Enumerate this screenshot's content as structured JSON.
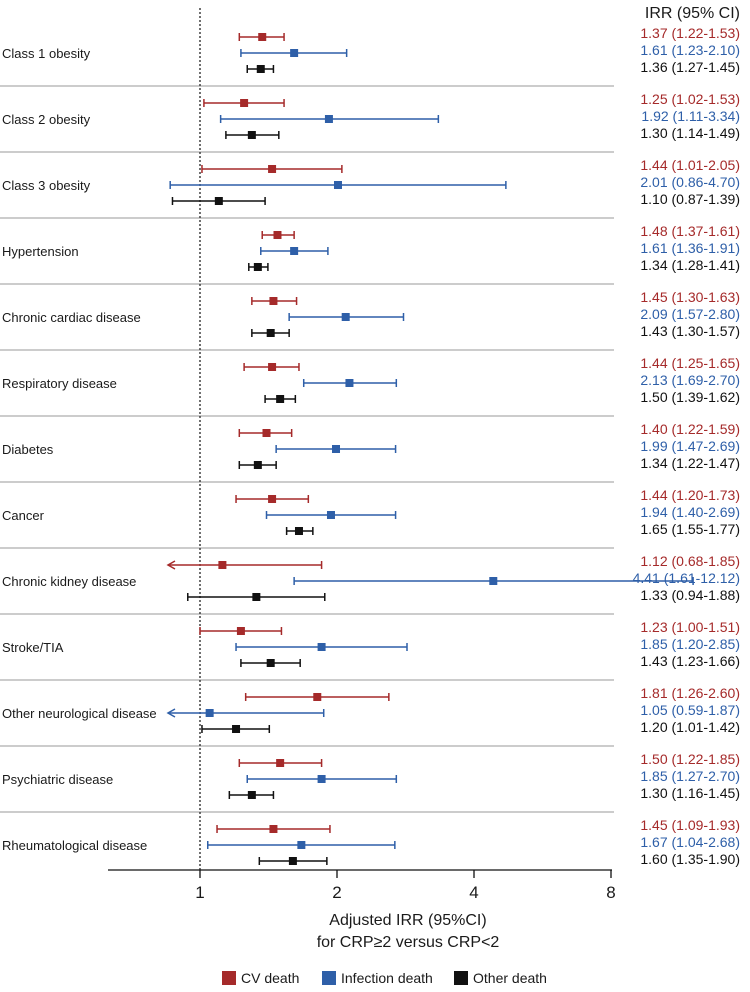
{
  "chart_data": {
    "type": "forest",
    "scale": "log2",
    "xlim": [
      0.7,
      8
    ],
    "xticks": [
      {
        "value": 1,
        "label": "1"
      },
      {
        "value": 2,
        "label": "2"
      },
      {
        "value": 4,
        "label": "4"
      },
      {
        "value": 8,
        "label": "8"
      }
    ],
    "reference_line": 1,
    "xlabel_line1": "Adjusted IRR (95%CI)",
    "xlabel_line2": "for CRP≥2 versus CRP<2",
    "column_header": "IRR (95% CI)",
    "colors": {
      "cv": "#a52a2a",
      "infection": "#2e5fa8",
      "other": "#111111"
    },
    "legend": [
      {
        "key": "cv",
        "label": "CV death"
      },
      {
        "key": "infection",
        "label": "Infection death"
      },
      {
        "key": "other",
        "label": "Other death"
      }
    ],
    "rows": [
      {
        "label": "Class 1 obesity",
        "estimates": [
          {
            "key": "cv",
            "est": 1.37,
            "lo": 1.22,
            "hi": 1.53,
            "text": "1.37 (1.22-1.53)"
          },
          {
            "key": "infection",
            "est": 1.61,
            "lo": 1.23,
            "hi": 2.1,
            "text": "1.61 (1.23-2.10)"
          },
          {
            "key": "other",
            "est": 1.36,
            "lo": 1.27,
            "hi": 1.45,
            "text": "1.36 (1.27-1.45)"
          }
        ]
      },
      {
        "label": "Class 2 obesity",
        "estimates": [
          {
            "key": "cv",
            "est": 1.25,
            "lo": 1.02,
            "hi": 1.53,
            "text": "1.25 (1.02-1.53)"
          },
          {
            "key": "infection",
            "est": 1.92,
            "lo": 1.11,
            "hi": 3.34,
            "text": "1.92 (1.11-3.34)"
          },
          {
            "key": "other",
            "est": 1.3,
            "lo": 1.14,
            "hi": 1.49,
            "text": "1.30 (1.14-1.49)"
          }
        ]
      },
      {
        "label": "Class 3 obesity",
        "estimates": [
          {
            "key": "cv",
            "est": 1.44,
            "lo": 1.01,
            "hi": 2.05,
            "text": "1.44 (1.01-2.05)"
          },
          {
            "key": "infection",
            "est": 2.01,
            "lo": 0.86,
            "hi": 4.7,
            "text": "2.01 (0.86-4.70)"
          },
          {
            "key": "other",
            "est": 1.1,
            "lo": 0.87,
            "hi": 1.39,
            "text": "1.10 (0.87-1.39)"
          }
        ]
      },
      {
        "label": "Hypertension",
        "estimates": [
          {
            "key": "cv",
            "est": 1.48,
            "lo": 1.37,
            "hi": 1.61,
            "text": "1.48 (1.37-1.61)"
          },
          {
            "key": "infection",
            "est": 1.61,
            "lo": 1.36,
            "hi": 1.91,
            "text": "1.61 (1.36-1.91)"
          },
          {
            "key": "other",
            "est": 1.34,
            "lo": 1.28,
            "hi": 1.41,
            "text": "1.34 (1.28-1.41)"
          }
        ]
      },
      {
        "label": "Chronic cardiac disease",
        "estimates": [
          {
            "key": "cv",
            "est": 1.45,
            "lo": 1.3,
            "hi": 1.63,
            "text": "1.45 (1.30-1.63)"
          },
          {
            "key": "infection",
            "est": 2.09,
            "lo": 1.57,
            "hi": 2.8,
            "text": "2.09 (1.57-2.80)"
          },
          {
            "key": "other",
            "est": 1.43,
            "lo": 1.3,
            "hi": 1.57,
            "text": "1.43 (1.30-1.57)"
          }
        ]
      },
      {
        "label": "Respiratory disease",
        "estimates": [
          {
            "key": "cv",
            "est": 1.44,
            "lo": 1.25,
            "hi": 1.65,
            "text": "1.44 (1.25-1.65)"
          },
          {
            "key": "infection",
            "est": 2.13,
            "lo": 1.69,
            "hi": 2.7,
            "text": "2.13 (1.69-2.70)"
          },
          {
            "key": "other",
            "est": 1.5,
            "lo": 1.39,
            "hi": 1.62,
            "text": "1.50 (1.39-1.62)"
          }
        ]
      },
      {
        "label": "Diabetes",
        "estimates": [
          {
            "key": "cv",
            "est": 1.4,
            "lo": 1.22,
            "hi": 1.59,
            "text": "1.40 (1.22-1.59)"
          },
          {
            "key": "infection",
            "est": 1.99,
            "lo": 1.47,
            "hi": 2.69,
            "text": "1.99 (1.47-2.69)"
          },
          {
            "key": "other",
            "est": 1.34,
            "lo": 1.22,
            "hi": 1.47,
            "text": "1.34 (1.22-1.47)"
          }
        ]
      },
      {
        "label": "Cancer",
        "estimates": [
          {
            "key": "cv",
            "est": 1.44,
            "lo": 1.2,
            "hi": 1.73,
            "text": "1.44 (1.20-1.73)"
          },
          {
            "key": "infection",
            "est": 1.94,
            "lo": 1.4,
            "hi": 2.69,
            "text": "1.94 (1.40-2.69)"
          },
          {
            "key": "other",
            "est": 1.65,
            "lo": 1.55,
            "hi": 1.77,
            "text": "1.65 (1.55-1.77)"
          }
        ]
      },
      {
        "label": "Chronic kidney disease",
        "estimates": [
          {
            "key": "cv",
            "est": 1.12,
            "lo": 0.68,
            "hi": 1.85,
            "text": "1.12 (0.68-1.85)"
          },
          {
            "key": "infection",
            "est": 4.41,
            "lo": 1.61,
            "hi": 12.12,
            "text": "4.41 (1.61-12.12)"
          },
          {
            "key": "other",
            "est": 1.33,
            "lo": 0.94,
            "hi": 1.88,
            "text": "1.33 (0.94-1.88)"
          }
        ]
      },
      {
        "label": "Stroke/TIA",
        "estimates": [
          {
            "key": "cv",
            "est": 1.23,
            "lo": 1.0,
            "hi": 1.51,
            "text": "1.23 (1.00-1.51)"
          },
          {
            "key": "infection",
            "est": 1.85,
            "lo": 1.2,
            "hi": 2.85,
            "text": "1.85 (1.20-2.85)"
          },
          {
            "key": "other",
            "est": 1.43,
            "lo": 1.23,
            "hi": 1.66,
            "text": "1.43 (1.23-1.66)"
          }
        ]
      },
      {
        "label": "Other neurological disease",
        "estimates": [
          {
            "key": "cv",
            "est": 1.81,
            "lo": 1.26,
            "hi": 2.6,
            "text": "1.81 (1.26-2.60)"
          },
          {
            "key": "infection",
            "est": 1.05,
            "lo": 0.59,
            "hi": 1.87,
            "text": "1.05 (0.59-1.87)"
          },
          {
            "key": "other",
            "est": 1.2,
            "lo": 1.01,
            "hi": 1.42,
            "text": "1.20 (1.01-1.42)"
          }
        ]
      },
      {
        "label": "Psychiatric disease",
        "estimates": [
          {
            "key": "cv",
            "est": 1.5,
            "lo": 1.22,
            "hi": 1.85,
            "text": "1.50 (1.22-1.85)"
          },
          {
            "key": "infection",
            "est": 1.85,
            "lo": 1.27,
            "hi": 2.7,
            "text": "1.85 (1.27-2.70)"
          },
          {
            "key": "other",
            "est": 1.3,
            "lo": 1.16,
            "hi": 1.45,
            "text": "1.30 (1.16-1.45)"
          }
        ]
      },
      {
        "label": "Rheumatological disease",
        "estimates": [
          {
            "key": "cv",
            "est": 1.45,
            "lo": 1.09,
            "hi": 1.93,
            "text": "1.45 (1.09-1.93)"
          },
          {
            "key": "infection",
            "est": 1.67,
            "lo": 1.04,
            "hi": 2.68,
            "text": "1.67 (1.04-2.68)"
          },
          {
            "key": "other",
            "est": 1.6,
            "lo": 1.35,
            "hi": 1.9,
            "text": "1.60 (1.35-1.90)"
          }
        ]
      }
    ]
  }
}
